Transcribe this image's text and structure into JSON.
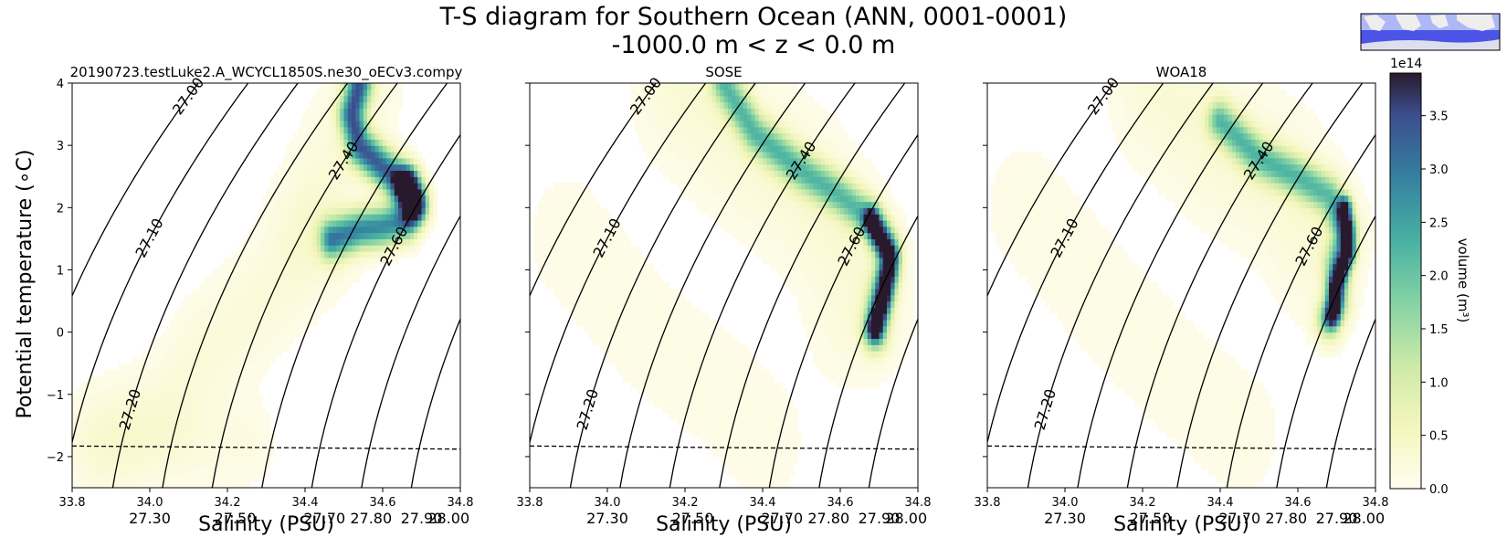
{
  "title": "T-S diagram for Southern Ocean (ANN, 0001-0001)",
  "subtitle": "-1000.0 m < z < 0.0 m",
  "xlabel": "Salinity (PSU)",
  "ylabel": "Potential temperature (∘C)",
  "panels": [
    {
      "title": "20190723.testLuke2.A_WCYCL1850S.ne30_oECv3.compy"
    },
    {
      "title": "SOSE"
    },
    {
      "title": "WOA18"
    }
  ],
  "colorbar": {
    "label": "volume (m³)",
    "multiplier": "1e14",
    "ticks": [
      "0.0",
      "0.5",
      "1.0",
      "1.5",
      "2.0",
      "2.5",
      "3.0",
      "3.5"
    ]
  },
  "colors": {
    "freezing_line": "#000000",
    "isopycnal": "#000000"
  },
  "chart_data": {
    "type": "heatmap",
    "xlim": [
      33.8,
      34.8
    ],
    "ylim": [
      -2.5,
      4
    ],
    "xticks": [
      "33.8",
      "34.0",
      "34.2",
      "34.4",
      "34.6",
      "34.8"
    ],
    "yticks": [
      "−2",
      "−1",
      "0",
      "1",
      "2",
      "3",
      "4"
    ],
    "isopycnals": [
      {
        "value": 27.0,
        "label": "27.00",
        "label_at": [
          34.1,
          2.8
        ]
      },
      {
        "value": 27.1,
        "label": "27.10",
        "label_at": [
          34.0,
          2.5
        ]
      },
      {
        "value": 27.2,
        "label": "27.20",
        "label_at": [
          33.95,
          0.4
        ]
      },
      {
        "value": 27.3,
        "label": "27.30",
        "label_at": [
          34.0,
          -0.9
        ]
      },
      {
        "value": 27.4,
        "label": "27.40",
        "label_at": [
          34.5,
          3.0
        ]
      },
      {
        "value": 27.5,
        "label": "27.50",
        "label_at": [
          34.22,
          -0.4
        ]
      },
      {
        "value": 27.6,
        "label": "27.60",
        "label_at": [
          34.63,
          3.0
        ]
      },
      {
        "value": 27.7,
        "label": "27.70",
        "label_at": [
          34.45,
          -0.4
        ]
      },
      {
        "value": 27.8,
        "label": "27.80",
        "label_at": [
          34.57,
          -1.4
        ]
      },
      {
        "value": 27.9,
        "label": "27.90",
        "label_at": [
          34.7,
          -0.8
        ]
      },
      {
        "value": 28.0,
        "label": "28.00",
        "label_at": [
          34.77,
          -1.7
        ]
      }
    ],
    "freezing_line": {
      "x": [
        33.8,
        34.8
      ],
      "y": [
        -1.83,
        -1.88
      ]
    },
    "volume_units": "1e14 m^3",
    "clim": [
      0,
      3.9
    ],
    "panels": [
      {
        "name": "20190723.testLuke2.A_WCYCL1850S.ne30_oECv3.compy",
        "blobs": [
          {
            "path": [
              [
                34.54,
                4.0
              ],
              [
                34.52,
                3.5
              ],
              [
                34.54,
                3.0
              ],
              [
                34.6,
                2.65
              ],
              [
                34.66,
                2.35
              ]
            ],
            "amp": 3.3,
            "w": 0.022
          },
          {
            "path": [
              [
                34.68,
                2.05
              ],
              [
                34.66,
                1.8
              ],
              [
                34.6,
                1.7
              ],
              [
                34.54,
                1.65
              ],
              [
                34.47,
                1.5
              ]
            ],
            "amp": 2.8,
            "w": 0.022
          },
          {
            "path": [
              [
                34.66,
                2.35
              ],
              [
                34.68,
                2.05
              ]
            ],
            "amp": 3.8,
            "w": 0.02
          },
          {
            "path": [
              [
                34.45,
                1.5
              ],
              [
                34.3,
                0.6
              ],
              [
                34.15,
                -0.3
              ],
              [
                34.05,
                -1.2
              ],
              [
                33.9,
                -1.75
              ]
            ],
            "amp": 0.25,
            "w": 0.06
          },
          {
            "path": [
              [
                34.55,
                3.8
              ],
              [
                34.45,
                2.6
              ],
              [
                34.4,
                1.9
              ]
            ],
            "amp": 0.22,
            "w": 0.06
          },
          {
            "path": [
              [
                33.85,
                -1.75
              ],
              [
                34.25,
                -1.78
              ]
            ],
            "amp": 0.15,
            "w": 0.05
          }
        ]
      },
      {
        "name": "SOSE",
        "blobs": [
          {
            "path": [
              [
                34.3,
                4.0
              ],
              [
                34.38,
                3.2
              ],
              [
                34.5,
                2.6
              ],
              [
                34.6,
                2.2
              ],
              [
                34.68,
                1.8
              ],
              [
                34.72,
                1.4
              ],
              [
                34.72,
                1.0
              ],
              [
                34.7,
                0.5
              ],
              [
                34.69,
                0.0
              ]
            ],
            "amp": 2.0,
            "w": 0.022
          },
          {
            "path": [
              [
                34.68,
                1.8
              ],
              [
                34.73,
                1.2
              ],
              [
                34.71,
                0.5
              ],
              [
                34.69,
                0.1
              ]
            ],
            "amp": 3.4,
            "w": 0.015
          },
          {
            "path": [
              [
                34.2,
                3.9
              ],
              [
                34.35,
                3.0
              ],
              [
                34.5,
                2.3
              ],
              [
                34.6,
                1.5
              ],
              [
                34.65,
                0.5
              ]
            ],
            "amp": 0.3,
            "w": 0.08
          },
          {
            "path": [
              [
                33.9,
                1.5
              ],
              [
                34.1,
                0.0
              ],
              [
                34.3,
                -1.0
              ],
              [
                34.4,
                -1.7
              ]
            ],
            "amp": 0.12,
            "w": 0.08
          }
        ]
      },
      {
        "name": "WOA18",
        "blobs": [
          {
            "path": [
              [
                34.4,
                3.4
              ],
              [
                34.5,
                2.8
              ],
              [
                34.6,
                2.5
              ],
              [
                34.68,
                2.2
              ],
              [
                34.72,
                1.6
              ],
              [
                34.7,
                1.1
              ],
              [
                34.7,
                0.5
              ],
              [
                34.68,
                0.2
              ]
            ],
            "amp": 2.0,
            "w": 0.022
          },
          {
            "path": [
              [
                34.72,
                2.0
              ],
              [
                34.73,
                1.3
              ],
              [
                34.7,
                0.8
              ],
              [
                34.69,
                0.3
              ]
            ],
            "amp": 3.7,
            "w": 0.013
          },
          {
            "path": [
              [
                34.25,
                3.9
              ],
              [
                34.4,
                3.0
              ],
              [
                34.55,
                2.4
              ],
              [
                34.65,
                1.5
              ]
            ],
            "amp": 0.3,
            "w": 0.08
          },
          {
            "path": [
              [
                33.9,
                2.0
              ],
              [
                34.1,
                0.5
              ],
              [
                34.3,
                -0.8
              ],
              [
                34.45,
                -1.6
              ]
            ],
            "amp": 0.12,
            "w": 0.08
          }
        ]
      }
    ]
  }
}
